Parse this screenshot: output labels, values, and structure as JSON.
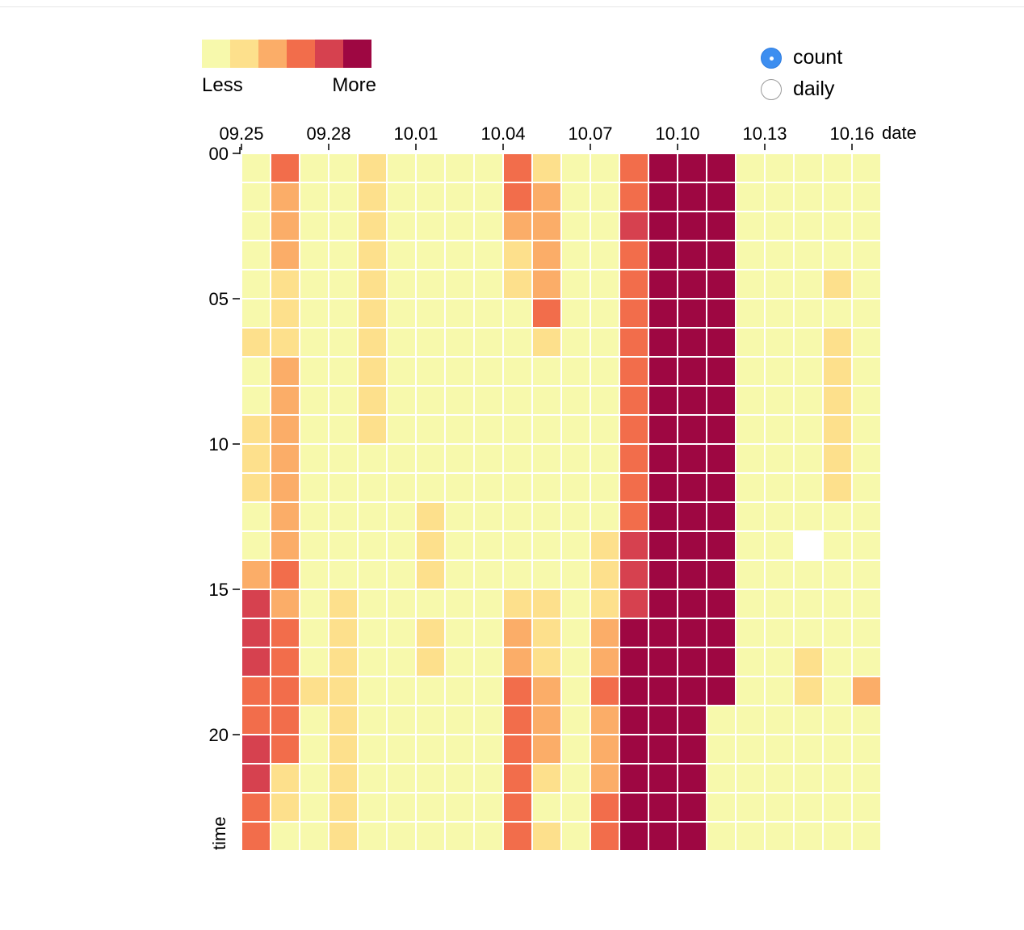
{
  "legend": {
    "less_label": "Less",
    "more_label": "More",
    "colors": [
      "#f7f9ac",
      "#fde08c",
      "#fbad68",
      "#f26d4b",
      "#d6414f",
      "#9e0742"
    ]
  },
  "mode_options": [
    {
      "label": "count",
      "selected": true
    },
    {
      "label": "daily",
      "selected": false
    }
  ],
  "chart_data": {
    "type": "heatmap",
    "xlabel": "date",
    "ylabel": "time",
    "x_tick_labels": [
      "09.25",
      "09.28",
      "10.01",
      "10.04",
      "10.07",
      "10.10",
      "10.13",
      "10.16"
    ],
    "y_tick_labels": [
      "00",
      "05",
      "10",
      "15",
      "20"
    ],
    "dates": [
      "09.25",
      "09.26",
      "09.27",
      "09.28",
      "09.29",
      "09.30",
      "10.01",
      "10.02",
      "10.03",
      "10.04",
      "10.05",
      "10.06",
      "10.07",
      "10.08",
      "10.09",
      "10.10",
      "10.11",
      "10.12",
      "10.13",
      "10.14",
      "10.15",
      "10.16"
    ],
    "hours": [
      "00",
      "01",
      "02",
      "03",
      "04",
      "05",
      "06",
      "07",
      "08",
      "09",
      "10",
      "11",
      "12",
      "13",
      "14",
      "15",
      "16",
      "17",
      "18",
      "19",
      "20",
      "21",
      "22",
      "23"
    ],
    "levels_note_scale": "0 = Less ... 5 = More, null = no data",
    "values": [
      [
        0,
        3,
        0,
        0,
        1,
        0,
        0,
        0,
        0,
        3,
        1,
        0,
        0,
        3,
        5,
        5,
        5,
        0,
        0,
        0,
        0,
        0
      ],
      [
        0,
        2,
        0,
        0,
        1,
        0,
        0,
        0,
        0,
        3,
        2,
        0,
        0,
        3,
        5,
        5,
        5,
        0,
        0,
        0,
        0,
        0
      ],
      [
        0,
        2,
        0,
        0,
        1,
        0,
        0,
        0,
        0,
        2,
        2,
        0,
        0,
        4,
        5,
        5,
        5,
        0,
        0,
        0,
        0,
        0
      ],
      [
        0,
        2,
        0,
        0,
        1,
        0,
        0,
        0,
        0,
        1,
        2,
        0,
        0,
        3,
        5,
        5,
        5,
        0,
        0,
        0,
        0,
        0
      ],
      [
        0,
        1,
        0,
        0,
        1,
        0,
        0,
        0,
        0,
        1,
        2,
        0,
        0,
        3,
        5,
        5,
        5,
        0,
        0,
        0,
        1,
        0
      ],
      [
        0,
        1,
        0,
        0,
        1,
        0,
        0,
        0,
        0,
        0,
        3,
        0,
        0,
        3,
        5,
        5,
        5,
        0,
        0,
        0,
        0,
        0
      ],
      [
        1,
        1,
        0,
        0,
        1,
        0,
        0,
        0,
        0,
        0,
        1,
        0,
        0,
        3,
        5,
        5,
        5,
        0,
        0,
        0,
        1,
        0
      ],
      [
        0,
        2,
        0,
        0,
        1,
        0,
        0,
        0,
        0,
        0,
        0,
        0,
        0,
        3,
        5,
        5,
        5,
        0,
        0,
        0,
        1,
        0
      ],
      [
        0,
        2,
        0,
        0,
        1,
        0,
        0,
        0,
        0,
        0,
        0,
        0,
        0,
        3,
        5,
        5,
        5,
        0,
        0,
        0,
        1,
        0
      ],
      [
        1,
        2,
        0,
        0,
        1,
        0,
        0,
        0,
        0,
        0,
        0,
        0,
        0,
        3,
        5,
        5,
        5,
        0,
        0,
        0,
        1,
        0
      ],
      [
        1,
        2,
        0,
        0,
        0,
        0,
        0,
        0,
        0,
        0,
        0,
        0,
        0,
        3,
        5,
        5,
        5,
        0,
        0,
        0,
        1,
        0
      ],
      [
        1,
        2,
        0,
        0,
        0,
        0,
        0,
        0,
        0,
        0,
        0,
        0,
        0,
        3,
        5,
        5,
        5,
        0,
        0,
        0,
        1,
        0
      ],
      [
        0,
        2,
        0,
        0,
        0,
        0,
        1,
        0,
        0,
        0,
        0,
        0,
        0,
        3,
        5,
        5,
        5,
        0,
        0,
        0,
        0,
        0
      ],
      [
        0,
        2,
        0,
        0,
        0,
        0,
        1,
        0,
        0,
        0,
        0,
        0,
        1,
        4,
        5,
        5,
        5,
        0,
        0,
        null,
        0,
        0
      ],
      [
        2,
        3,
        0,
        0,
        0,
        0,
        1,
        0,
        0,
        0,
        0,
        0,
        1,
        4,
        5,
        5,
        5,
        0,
        0,
        0,
        0,
        0
      ],
      [
        4,
        2,
        0,
        1,
        0,
        0,
        0,
        0,
        0,
        1,
        1,
        0,
        1,
        4,
        5,
        5,
        5,
        0,
        0,
        0,
        0,
        0
      ],
      [
        4,
        3,
        0,
        1,
        0,
        0,
        1,
        0,
        0,
        2,
        1,
        0,
        2,
        5,
        5,
        5,
        5,
        0,
        0,
        0,
        0,
        0
      ],
      [
        4,
        3,
        0,
        1,
        0,
        0,
        1,
        0,
        0,
        2,
        1,
        0,
        2,
        5,
        5,
        5,
        5,
        0,
        0,
        1,
        0,
        0
      ],
      [
        3,
        3,
        1,
        1,
        0,
        0,
        0,
        0,
        0,
        3,
        2,
        0,
        3,
        5,
        5,
        5,
        5,
        0,
        0,
        1,
        0,
        2
      ],
      [
        3,
        3,
        0,
        1,
        0,
        0,
        0,
        0,
        0,
        3,
        2,
        0,
        2,
        5,
        5,
        5,
        0,
        0,
        0,
        0,
        0,
        0
      ],
      [
        4,
        3,
        0,
        1,
        0,
        0,
        0,
        0,
        0,
        3,
        2,
        0,
        2,
        5,
        5,
        5,
        0,
        0,
        0,
        0,
        0,
        0
      ],
      [
        4,
        1,
        0,
        1,
        0,
        0,
        0,
        0,
        0,
        3,
        1,
        0,
        2,
        5,
        5,
        5,
        0,
        0,
        0,
        0,
        0,
        0
      ],
      [
        3,
        1,
        0,
        1,
        0,
        0,
        0,
        0,
        0,
        3,
        0,
        0,
        3,
        5,
        5,
        5,
        0,
        0,
        0,
        0,
        0,
        0
      ],
      [
        3,
        0,
        0,
        1,
        0,
        0,
        0,
        0,
        0,
        3,
        1,
        0,
        3,
        5,
        5,
        5,
        0,
        0,
        0,
        0,
        0,
        0
      ]
    ]
  }
}
